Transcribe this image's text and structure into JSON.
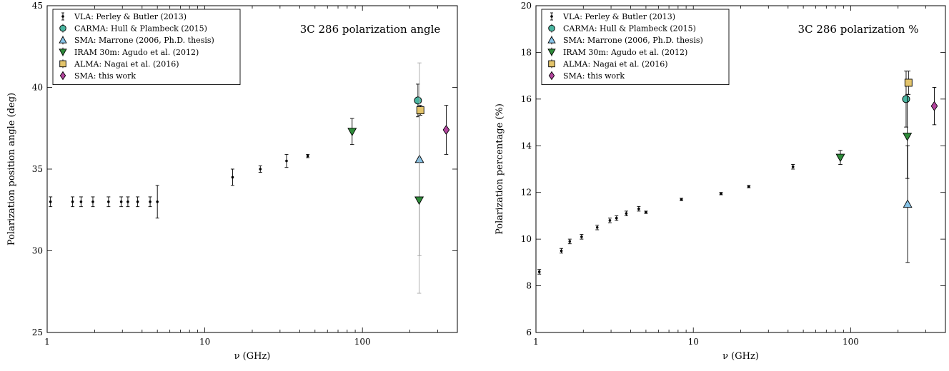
{
  "chart_data": [
    {
      "type": "scatter",
      "title": "3C 286 polarization angle",
      "xlabel": "ν (GHz)",
      "ylabel": "Polarization position angle (deg)",
      "xscale": "log",
      "xlim": [
        1,
        400
      ],
      "ylim": [
        25,
        45
      ],
      "xticks": [
        1,
        10,
        100
      ],
      "xtick_labels": [
        "1",
        "10",
        "100"
      ],
      "yticks": [
        25,
        30,
        35,
        40,
        45
      ],
      "ytick_labels": [
        "25",
        "30",
        "35",
        "40",
        "45"
      ],
      "grid": false,
      "legend_position": "top-left",
      "series": [
        {
          "name": "VLA: Perley & Butler (2013)",
          "marker": "dot",
          "color": "#000000",
          "points": [
            {
              "x": 1.05,
              "y": 33.0,
              "err": 0.3
            },
            {
              "x": 1.45,
              "y": 33.0,
              "err": 0.3
            },
            {
              "x": 1.64,
              "y": 33.0,
              "err": 0.3
            },
            {
              "x": 1.95,
              "y": 33.0,
              "err": 0.3
            },
            {
              "x": 2.45,
              "y": 33.0,
              "err": 0.3
            },
            {
              "x": 2.95,
              "y": 33.0,
              "err": 0.3
            },
            {
              "x": 3.25,
              "y": 33.0,
              "err": 0.3
            },
            {
              "x": 3.75,
              "y": 33.0,
              "err": 0.3
            },
            {
              "x": 4.5,
              "y": 33.0,
              "err": 0.3
            },
            {
              "x": 5.0,
              "y": 33.0,
              "err": 1.0
            },
            {
              "x": 15.0,
              "y": 34.5,
              "err": 0.5
            },
            {
              "x": 22.5,
              "y": 35.0,
              "err": 0.2
            },
            {
              "x": 33.0,
              "y": 35.5,
              "err": 0.4
            },
            {
              "x": 45.0,
              "y": 35.8,
              "err": 0.1
            }
          ]
        },
        {
          "name": "CARMA: Hull & Plambeck (2015)",
          "marker": "circle",
          "color": "#49b5a0",
          "points": [
            {
              "x": 225,
              "y": 39.2,
              "err": 1.0
            }
          ]
        },
        {
          "name": "SMA: Marrone (2006, Ph.D. thesis)",
          "marker": "triangle-up",
          "color": "#88c4e8",
          "points": [
            {
              "x": 230,
              "y": 35.6,
              "err": 5.9
            }
          ]
        },
        {
          "name": "IRAM 30m: Agudo et al. (2012)",
          "marker": "triangle-down",
          "color": "#2e8b3a",
          "points": [
            {
              "x": 86,
              "y": 37.3,
              "err": 0.8
            },
            {
              "x": 229,
              "y": 33.1,
              "err": 5.7
            }
          ]
        },
        {
          "name": "ALMA: Nagai et al. (2016)",
          "marker": "square",
          "color": "#e3c46b",
          "points": [
            {
              "x": 233,
              "y": 38.6,
              "err": 0.3
            }
          ]
        },
        {
          "name": "SMA: this work",
          "marker": "diamond",
          "color": "#b2449d",
          "points": [
            {
              "x": 340,
              "y": 37.4,
              "err": 1.5
            }
          ]
        }
      ]
    },
    {
      "type": "scatter",
      "title": "3C 286 polarization %",
      "xlabel": "ν (GHz)",
      "ylabel": "Polarization percentage (%)",
      "xscale": "log",
      "xlim": [
        1,
        400
      ],
      "ylim": [
        6,
        20
      ],
      "xticks": [
        1,
        10,
        100
      ],
      "xtick_labels": [
        "1",
        "10",
        "100"
      ],
      "yticks": [
        6,
        8,
        10,
        12,
        14,
        16,
        18,
        20
      ],
      "ytick_labels": [
        "6",
        "8",
        "10",
        "12",
        "14",
        "16",
        "18",
        "20"
      ],
      "grid": false,
      "legend_position": "top-left",
      "series": [
        {
          "name": "VLA: Perley & Butler (2013)",
          "marker": "dot",
          "color": "#000000",
          "points": [
            {
              "x": 1.05,
              "y": 8.6,
              "err": 0.1
            },
            {
              "x": 1.45,
              "y": 9.5,
              "err": 0.1
            },
            {
              "x": 1.64,
              "y": 9.9,
              "err": 0.1
            },
            {
              "x": 1.95,
              "y": 10.1,
              "err": 0.1
            },
            {
              "x": 2.45,
              "y": 10.5,
              "err": 0.1
            },
            {
              "x": 2.95,
              "y": 10.8,
              "err": 0.1
            },
            {
              "x": 3.25,
              "y": 10.9,
              "err": 0.1
            },
            {
              "x": 3.75,
              "y": 11.1,
              "err": 0.1
            },
            {
              "x": 4.5,
              "y": 11.3,
              "err": 0.1
            },
            {
              "x": 5.0,
              "y": 11.15,
              "err": 0.05
            },
            {
              "x": 8.4,
              "y": 11.7,
              "err": 0.05
            },
            {
              "x": 15.0,
              "y": 11.95,
              "err": 0.05
            },
            {
              "x": 22.5,
              "y": 12.25,
              "err": 0.05
            },
            {
              "x": 43.0,
              "y": 13.1,
              "err": 0.1
            }
          ]
        },
        {
          "name": "CARMA: Hull & Plambeck (2015)",
          "marker": "circle",
          "color": "#49b5a0",
          "points": [
            {
              "x": 225,
              "y": 16.0,
              "err": 1.2
            }
          ]
        },
        {
          "name": "SMA: Marrone (2006, Ph.D. thesis)",
          "marker": "triangle-up",
          "color": "#88c4e8",
          "points": [
            {
              "x": 230,
              "y": 11.5,
              "err": 2.5
            }
          ]
        },
        {
          "name": "IRAM 30m: Agudo et al. (2012)",
          "marker": "triangle-down",
          "color": "#2e8b3a",
          "points": [
            {
              "x": 86,
              "y": 13.5,
              "err": 0.3
            },
            {
              "x": 229,
              "y": 14.4,
              "err": 1.8
            }
          ]
        },
        {
          "name": "ALMA: Nagai et al. (2016)",
          "marker": "square",
          "color": "#e3c46b",
          "points": [
            {
              "x": 233,
              "y": 16.7,
              "err": 0.5
            }
          ]
        },
        {
          "name": "SMA: this work",
          "marker": "diamond",
          "color": "#b2449d",
          "points": [
            {
              "x": 340,
              "y": 15.7,
              "err": 0.8
            }
          ]
        }
      ]
    }
  ]
}
